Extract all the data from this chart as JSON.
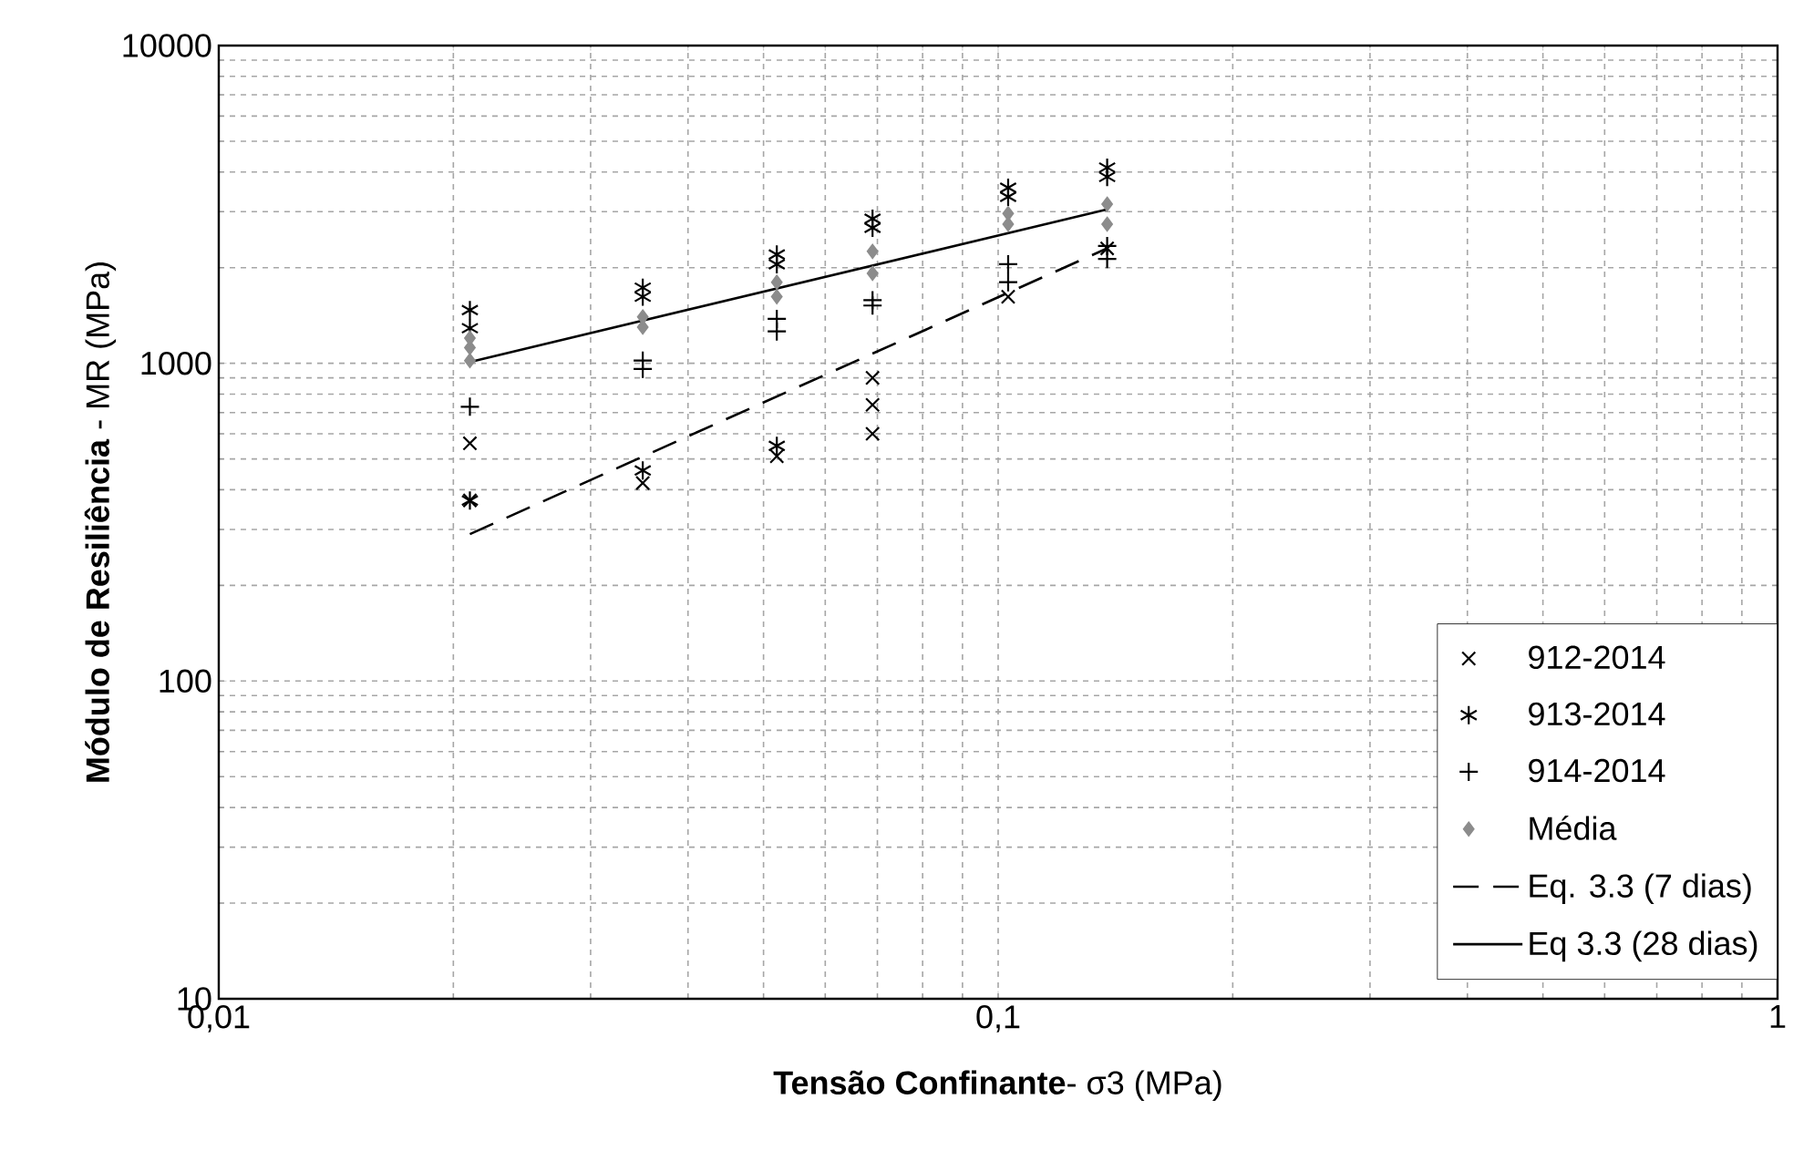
{
  "chart_data": {
    "type": "scatter",
    "xlabel": "**Tensão Confinante**- σ3 (MPa)",
    "ylabel": "**Módulo de Resiliência** - MR (MPa)",
    "log": "xy",
    "grid": true,
    "legend": "bottom right",
    "xlim": [
      0.01,
      1
    ],
    "ylim": [
      10,
      10000
    ],
    "xticks": [
      {
        "value": 0.01,
        "label": "0,01"
      },
      {
        "value": 0.1,
        "label": "0,1"
      },
      1
    ],
    "yticks": [
      10,
      100,
      1000,
      10000
    ],
    "series": [
      {
        "name": "912-2014",
        "color": "#000000",
        "marker": "cross",
        "x": [
          0.021,
          0.021,
          0.035,
          0.052,
          0.069,
          0.069,
          0.069,
          0.103,
          0.138
        ],
        "values": [
          560,
          370,
          420,
          510,
          900,
          740,
          600,
          1620,
          2300
        ]
      },
      {
        "name": "913-2014",
        "color": "#000000",
        "x": [
          0.021,
          0.021,
          0.021,
          0.035,
          0.035,
          0.035,
          0.052,
          0.052,
          0.052,
          0.069,
          0.069,
          0.103,
          0.103,
          0.138,
          0.138
        ],
        "values": [
          1470,
          1290,
          370,
          1730,
          1620,
          460,
          2200,
          2050,
          550,
          2850,
          2670,
          3570,
          3340,
          4130,
          3860
        ]
      },
      {
        "name": "914-2014",
        "color": "#000000",
        "marker": "plus",
        "x": [
          0.021,
          0.035,
          0.035,
          0.052,
          0.052,
          0.069,
          0.069,
          0.103,
          0.103,
          0.138,
          0.138
        ],
        "values": [
          730,
          1020,
          960,
          1380,
          1260,
          1580,
          1520,
          2050,
          1800,
          2340,
          2130
        ]
      },
      {
        "name": "Média",
        "color": "#8c8c8c",
        "marker": "diamond",
        "x": [
          0.021,
          0.021,
          0.021,
          0.035,
          0.035,
          0.052,
          0.052,
          0.069,
          0.069,
          0.103,
          0.103,
          0.138,
          0.138
        ],
        "values": [
          1020,
          1120,
          1200,
          1400,
          1300,
          1800,
          1620,
          2250,
          1920,
          2960,
          2740,
          3170,
          2740
        ]
      },
      {
        "name": "Eq. 3.3 (7 dias)",
        "type": "line",
        "color": "#000000",
        "marker": "none",
        "line_style": "dashed",
        "x": [
          0.021,
          0.138
        ],
        "values": [
          290,
          2300
        ]
      },
      {
        "name": "Eq 3.3 (28 dias)",
        "type": "line",
        "color": "#000000",
        "marker": "none",
        "line_style": "solid",
        "x": [
          0.021,
          0.138
        ],
        "values": [
          1010,
          3050
        ]
      }
    ]
  }
}
